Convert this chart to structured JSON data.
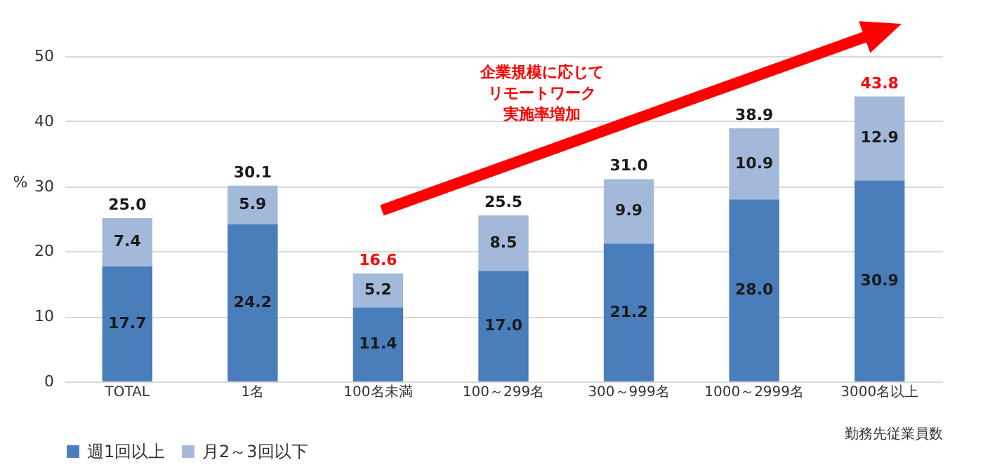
{
  "chart_data": {
    "type": "bar",
    "stacked": true,
    "xlabel": "勤務先従業員数",
    "ylabel": "%",
    "categories": [
      "TOTAL",
      "1名",
      "100名未満",
      "100～299名",
      "300～999名",
      "1000～2999名",
      "3000名以上"
    ],
    "series": [
      {
        "name": "週1回以上",
        "color": "#4a7ebb",
        "values": [
          17.7,
          24.2,
          11.4,
          17.0,
          21.2,
          28.0,
          30.9
        ],
        "value_labels": [
          "17.7",
          "24.2",
          "11.4",
          "17.0",
          "21.2",
          "28.0",
          "30.9"
        ]
      },
      {
        "name": "月2～3回以下",
        "color": "#a3b9d9",
        "values": [
          7.4,
          5.9,
          5.2,
          8.5,
          9.9,
          10.9,
          12.9
        ],
        "value_labels": [
          "7.4",
          "5.9",
          "5.2",
          "8.5",
          "9.9",
          "10.9",
          "12.9"
        ]
      }
    ],
    "totals": [
      "25.0",
      "30.1",
      "16.6",
      "25.5",
      "31.0",
      "38.9",
      "43.8"
    ],
    "ylim": [
      0,
      50
    ],
    "yticks": [
      0,
      10,
      20,
      30,
      40,
      50
    ],
    "grid": "y",
    "legend": "bottom",
    "annotations": [
      "企業規模に応じて",
      "リモートワーク",
      "実施率増加"
    ]
  }
}
